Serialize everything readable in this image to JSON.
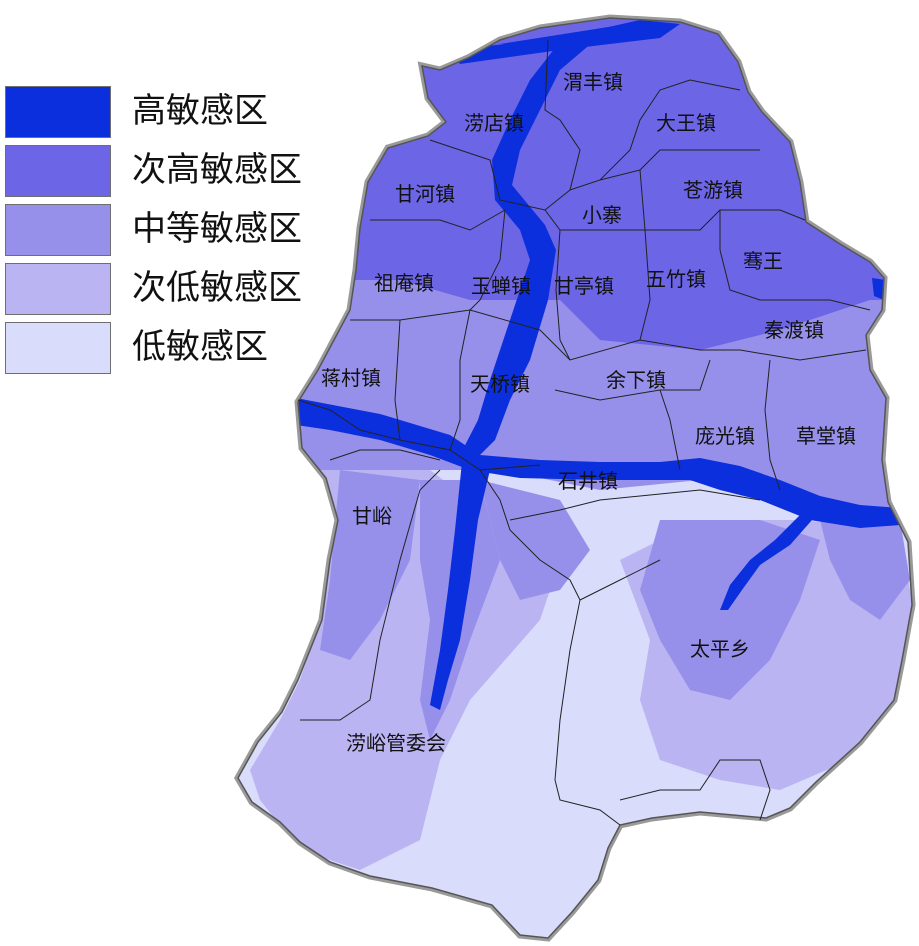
{
  "legend": {
    "items": [
      {
        "label": "高敏感区",
        "color": "#0b2fdc"
      },
      {
        "label": "次高敏感区",
        "color": "#6c65e6"
      },
      {
        "label": "中等敏感区",
        "color": "#9790ea"
      },
      {
        "label": "次低敏感区",
        "color": "#bab4f3"
      },
      {
        "label": "低敏感区",
        "color": "#d9dcfb"
      }
    ]
  },
  "towns": [
    "渭丰镇",
    "涝店镇",
    "大王镇",
    "甘河镇",
    "苍游镇",
    "小寨",
    "祖庵镇",
    "玉蝉镇",
    "甘亭镇",
    "五竹镇",
    "骞王",
    "秦渡镇",
    "蒋村镇",
    "天桥镇",
    "余下镇",
    "庞光镇",
    "草堂镇",
    "石井镇",
    "甘峪",
    "太平乡",
    "涝峪管委会"
  ]
}
